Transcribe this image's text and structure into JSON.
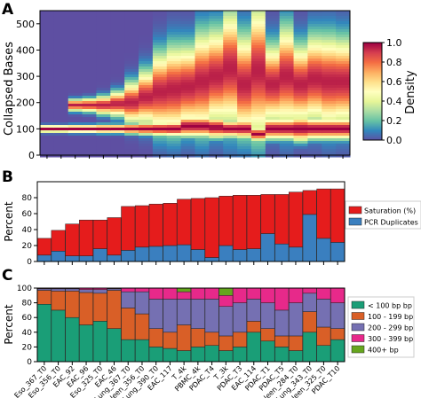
{
  "panels": {
    "a": "A",
    "b": "B",
    "c": "C"
  },
  "chart_data": [
    {
      "panel": "A",
      "type": "heatmap",
      "ylabel": "Collapsed Bases",
      "ylim": [
        0,
        550
      ],
      "yticks": [
        0,
        100,
        200,
        300,
        400,
        500
      ],
      "colorbar": {
        "label": "Density",
        "ticks": [
          "0.0",
          "0.2",
          "0.4",
          "0.6",
          "0.8",
          "1.0"
        ],
        "range": [
          0,
          1
        ],
        "colormap": "Spectral_r"
      },
      "columns": [
        {
          "peaks": [
            [
              100,
              8
            ]
          ]
        },
        {
          "peaks": [
            [
              100,
              8
            ]
          ]
        },
        {
          "peaks": [
            [
              100,
              9
            ],
            [
              190,
              14
            ]
          ]
        },
        {
          "peaks": [
            [
              100,
              9
            ],
            [
              190,
              16
            ]
          ]
        },
        {
          "peaks": [
            [
              100,
              10
            ],
            [
              190,
              22
            ]
          ]
        },
        {
          "peaks": [
            [
              100,
              10
            ],
            [
              195,
              30
            ]
          ]
        },
        {
          "peaks": [
            [
              100,
              12
            ],
            [
              200,
              50
            ]
          ]
        },
        {
          "peaks": [
            [
              100,
              14
            ],
            [
              220,
              65
            ]
          ]
        },
        {
          "peaks": [
            [
              100,
              16
            ],
            [
              240,
              95
            ]
          ]
        },
        {
          "peaks": [
            [
              100,
              18
            ],
            [
              250,
              105
            ]
          ]
        },
        {
          "peaks": [
            [
              110,
              25
            ],
            [
              260,
              100
            ]
          ]
        },
        {
          "peaks": [
            [
              110,
              25
            ],
            [
              280,
              120
            ]
          ]
        },
        {
          "peaks": [
            [
              105,
              25
            ],
            [
              300,
              115
            ]
          ]
        },
        {
          "peaks": [
            [
              100,
              20
            ],
            [
              330,
              140
            ]
          ]
        },
        {
          "peaks": [
            [
              100,
              22
            ],
            [
              270,
              120
            ]
          ]
        },
        {
          "peaks": [
            [
              80,
              15
            ],
            [
              320,
              160
            ]
          ]
        },
        {
          "peaks": [
            [
              100,
              25
            ],
            [
              270,
              95
            ]
          ]
        },
        {
          "peaks": [
            [
              100,
              25
            ],
            [
              300,
              120
            ]
          ]
        },
        {
          "peaks": [
            [
              100,
              30
            ],
            [
              270,
              95
            ]
          ]
        },
        {
          "peaks": [
            [
              100,
              25
            ],
            [
              290,
              105
            ]
          ]
        },
        {
          "peaks": [
            [
              100,
              25
            ],
            [
              280,
              110
            ]
          ]
        },
        {
          "peaks": [
            [
              100,
              25
            ],
            [
              280,
              105
            ]
          ]
        }
      ]
    },
    {
      "panel": "B",
      "type": "bar",
      "stacked": true,
      "ylabel": "Percent",
      "ylim": [
        0,
        100
      ],
      "yticks": [
        0,
        20,
        40,
        60,
        80
      ],
      "legend_position": "center-right",
      "series": [
        {
          "name": "PCR Duplicates (%)",
          "color": "#3a7fbf",
          "values": [
            8,
            13,
            7,
            7,
            16,
            8,
            14,
            18,
            19,
            20,
            21,
            15,
            5,
            20,
            15,
            16,
            35,
            22,
            18,
            59,
            29,
            24
          ]
        },
        {
          "name": "Saturation (%)",
          "color": "#e51c1c",
          "values": [
            21,
            26,
            40,
            45,
            36,
            47,
            55,
            52,
            53,
            53,
            57,
            64,
            75,
            62,
            68,
            67,
            49,
            62,
            69,
            30,
            62,
            67
          ]
        }
      ]
    },
    {
      "panel": "C",
      "type": "bar",
      "stacked": true,
      "ylabel": "Percent",
      "ylim": [
        0,
        100
      ],
      "yticks": [
        0,
        20,
        40,
        60,
        80,
        100
      ],
      "legend_position": "right",
      "categories": [
        "Eso_367_T0",
        "Eso_356_T0",
        "EAC_92",
        "EAC_96",
        "Eso_325_T0",
        "EAC_46",
        "Lung_367_T0",
        "Spleen_356_T0",
        "Lung_390_T0",
        "EAC_117",
        "T_4k",
        "PBMC_4k",
        "PDAC_T4",
        "T_3k",
        "PDAC_T3",
        "EAC_114",
        "PDAC_T1",
        "PDAC_T5",
        "Spleen_284_T0",
        "Lung_343_T0",
        "Spleen_325_T0",
        "PDAC_T10"
      ],
      "series": [
        {
          "name": "< 100 bp bp",
          "color": "#1a9e77",
          "values": [
            78,
            70,
            60,
            50,
            55,
            45,
            30,
            30,
            20,
            18,
            15,
            20,
            22,
            15,
            20,
            40,
            28,
            20,
            15,
            40,
            22,
            30
          ]
        },
        {
          "name": "100 - 199 bp",
          "color": "#d95f27",
          "values": [
            19,
            26,
            36,
            44,
            38,
            52,
            43,
            35,
            25,
            22,
            35,
            25,
            18,
            20,
            20,
            15,
            17,
            15,
            20,
            28,
            25,
            15
          ]
        },
        {
          "name": "200 - 299 bp",
          "color": "#7570b2",
          "values": [
            2,
            3,
            3,
            4,
            5,
            2,
            22,
            30,
            40,
            45,
            35,
            40,
            45,
            40,
            40,
            30,
            35,
            35,
            45,
            25,
            38,
            35
          ]
        },
        {
          "name": "300 - 399 bp",
          "color": "#e7298a",
          "values": [
            1,
            1,
            1,
            2,
            2,
            1,
            5,
            5,
            15,
            15,
            10,
            15,
            15,
            15,
            20,
            15,
            20,
            30,
            20,
            7,
            15,
            20
          ]
        },
        {
          "name": "400+ bp",
          "color": "#66a61e",
          "values": [
            0,
            0,
            0,
            0,
            0,
            0,
            0,
            0,
            0,
            0,
            5,
            0,
            0,
            10,
            0,
            0,
            0,
            0,
            0,
            0,
            0,
            0
          ]
        }
      ]
    }
  ]
}
